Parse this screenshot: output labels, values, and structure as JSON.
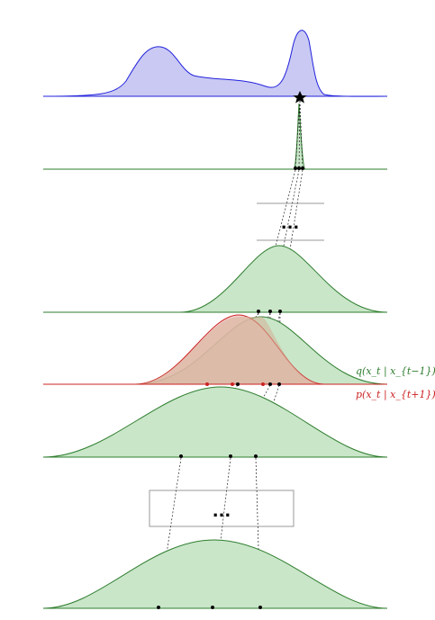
{
  "colors": {
    "data_stroke": "#2222dd",
    "data_fill": "#c9c9f3",
    "forward_stroke": "#2e7d2e",
    "forward_fill": "#c9e6c9",
    "reverse_stroke": "#cc2222",
    "reverse_fill": "#f0c2c2",
    "overlap_fill": "#d4ae94",
    "connector": "#222222",
    "box_stroke": "#999999"
  },
  "icons": {
    "data_point": "star-icon",
    "sample": "dot"
  },
  "labels": {
    "ellipsis_top": "...",
    "ellipsis_bottom": "...",
    "forward": "q(x_t | x_{t−1})",
    "reverse": "p(x_t | x_{t+1})"
  }
}
